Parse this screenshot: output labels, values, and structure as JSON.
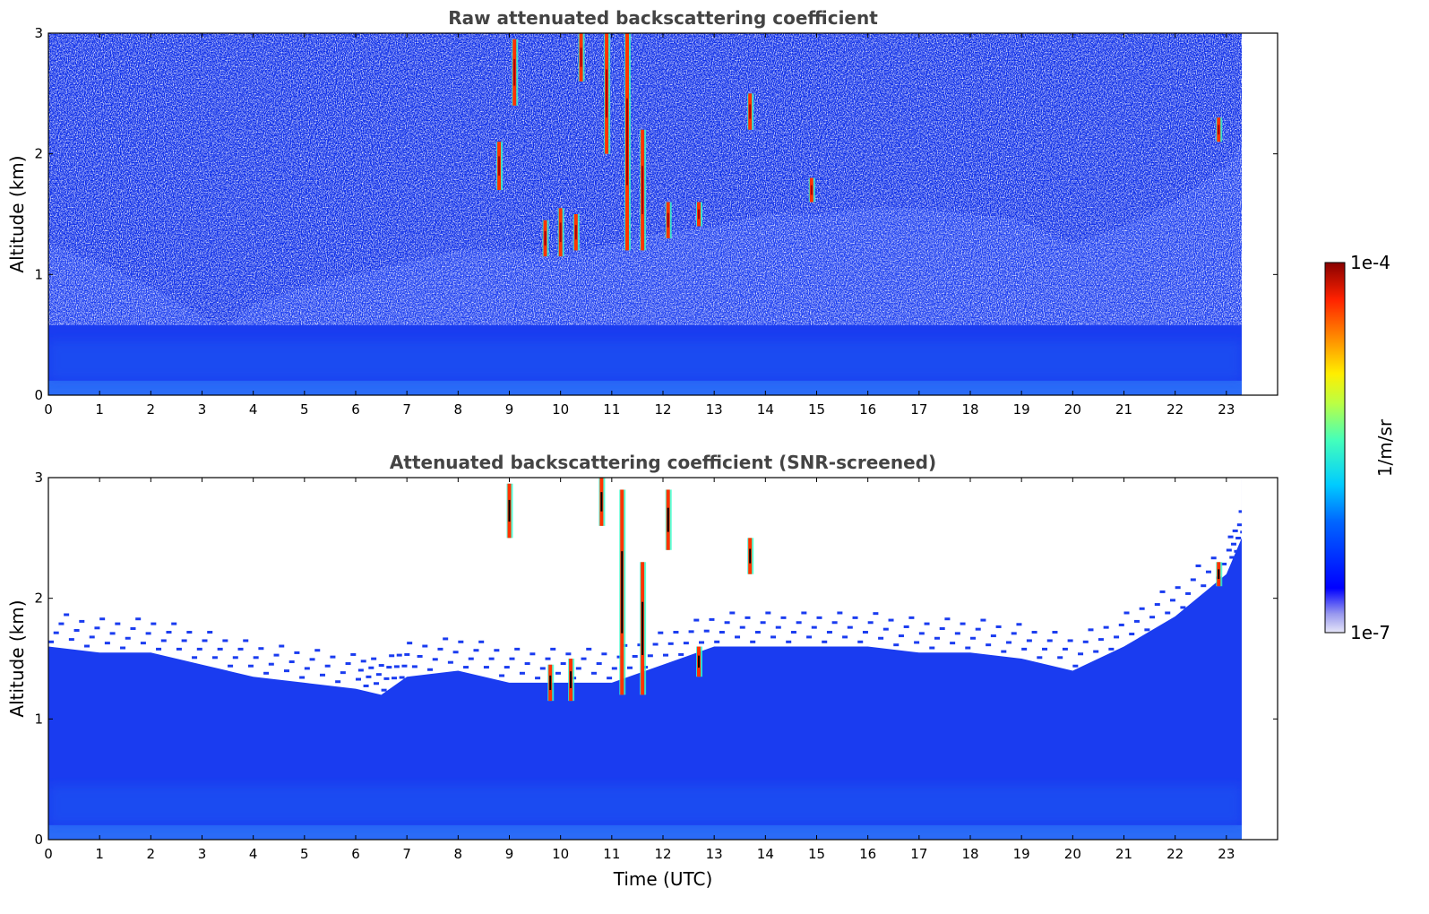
{
  "chart_data": [
    {
      "type": "heatmap",
      "title": "Raw attenuated backscattering coefficient",
      "xlabel": "",
      "ylabel": "Altitude (km)",
      "xlim": [
        0,
        24
      ],
      "ylim": [
        0,
        3
      ],
      "xticks": [
        0,
        1,
        2,
        3,
        4,
        5,
        6,
        7,
        8,
        9,
        10,
        11,
        12,
        13,
        14,
        15,
        16,
        17,
        18,
        19,
        20,
        21,
        22,
        23
      ],
      "yticks": [
        0,
        1,
        2,
        3
      ],
      "data_end_time": 23.3,
      "noise_boundary_km": [
        [
          0,
          1.25
        ],
        [
          1,
          1.1
        ],
        [
          2,
          0.9
        ],
        [
          3,
          0.65
        ],
        [
          3.5,
          0.58
        ],
        [
          4,
          0.75
        ],
        [
          5,
          0.9
        ],
        [
          6,
          1.0
        ],
        [
          7,
          1.1
        ],
        [
          8,
          1.2
        ],
        [
          9,
          1.2
        ],
        [
          10,
          1.15
        ],
        [
          11,
          1.25
        ],
        [
          12,
          1.35
        ],
        [
          13,
          1.4
        ],
        [
          14,
          1.5
        ],
        [
          15,
          1.5
        ],
        [
          16,
          1.55
        ],
        [
          17,
          1.55
        ],
        [
          18,
          1.5
        ],
        [
          19,
          1.45
        ],
        [
          20,
          1.25
        ],
        [
          21,
          1.4
        ],
        [
          22,
          1.6
        ],
        [
          23,
          1.9
        ],
        [
          23.3,
          2.1
        ]
      ],
      "cloud_columns": [
        {
          "t": 8.8,
          "bottom_km": 1.7,
          "top_km": 2.1
        },
        {
          "t": 9.1,
          "bottom_km": 2.4,
          "top_km": 2.95
        },
        {
          "t": 9.7,
          "bottom_km": 1.15,
          "top_km": 1.45
        },
        {
          "t": 10.0,
          "bottom_km": 1.15,
          "top_km": 1.55
        },
        {
          "t": 10.3,
          "bottom_km": 1.2,
          "top_km": 1.5
        },
        {
          "t": 10.4,
          "bottom_km": 2.6,
          "top_km": 3.0
        },
        {
          "t": 10.9,
          "bottom_km": 2.0,
          "top_km": 3.0
        },
        {
          "t": 11.3,
          "bottom_km": 1.2,
          "top_km": 3.0
        },
        {
          "t": 11.6,
          "bottom_km": 1.2,
          "top_km": 2.2
        },
        {
          "t": 12.1,
          "bottom_km": 1.3,
          "top_km": 1.6
        },
        {
          "t": 12.7,
          "bottom_km": 1.4,
          "top_km": 1.6
        },
        {
          "t": 13.7,
          "bottom_km": 2.2,
          "top_km": 2.5
        },
        {
          "t": 14.9,
          "bottom_km": 1.6,
          "top_km": 1.8
        },
        {
          "t": 22.85,
          "bottom_km": 2.1,
          "top_km": 2.3
        }
      ]
    },
    {
      "type": "heatmap",
      "title": "Attenuated backscattering coefficient (SNR-screened)",
      "xlabel": "Time (UTC)",
      "ylabel": "Altitude (km)",
      "xlim": [
        0,
        24
      ],
      "ylim": [
        0,
        3
      ],
      "xticks": [
        0,
        1,
        2,
        3,
        4,
        5,
        6,
        7,
        8,
        9,
        10,
        11,
        12,
        13,
        14,
        15,
        16,
        17,
        18,
        19,
        20,
        21,
        22,
        23
      ],
      "yticks": [
        0,
        1,
        2,
        3
      ],
      "data_end_time": 23.3,
      "layer_top_km": [
        [
          0,
          1.6
        ],
        [
          1,
          1.55
        ],
        [
          2,
          1.55
        ],
        [
          3,
          1.45
        ],
        [
          4,
          1.35
        ],
        [
          5,
          1.3
        ],
        [
          6,
          1.25
        ],
        [
          6.5,
          1.2
        ],
        [
          7,
          1.35
        ],
        [
          8,
          1.4
        ],
        [
          9,
          1.3
        ],
        [
          10,
          1.3
        ],
        [
          11,
          1.3
        ],
        [
          12,
          1.45
        ],
        [
          13,
          1.6
        ],
        [
          14,
          1.6
        ],
        [
          15,
          1.6
        ],
        [
          16,
          1.6
        ],
        [
          17,
          1.55
        ],
        [
          18,
          1.55
        ],
        [
          19,
          1.5
        ],
        [
          20,
          1.4
        ],
        [
          21,
          1.6
        ],
        [
          22,
          1.85
        ],
        [
          23,
          2.2
        ],
        [
          23.3,
          2.5
        ]
      ],
      "cloud_columns": [
        {
          "t": 9.0,
          "bottom_km": 2.5,
          "top_km": 2.95
        },
        {
          "t": 9.8,
          "bottom_km": 1.15,
          "top_km": 1.45
        },
        {
          "t": 10.2,
          "bottom_km": 1.15,
          "top_km": 1.5
        },
        {
          "t": 10.8,
          "bottom_km": 2.6,
          "top_km": 3.0
        },
        {
          "t": 11.2,
          "bottom_km": 1.2,
          "top_km": 2.9
        },
        {
          "t": 11.6,
          "bottom_km": 1.2,
          "top_km": 2.3
        },
        {
          "t": 12.1,
          "bottom_km": 2.4,
          "top_km": 2.9
        },
        {
          "t": 12.7,
          "bottom_km": 1.35,
          "top_km": 1.6
        },
        {
          "t": 13.7,
          "bottom_km": 2.2,
          "top_km": 2.5
        },
        {
          "t": 22.85,
          "bottom_km": 2.1,
          "top_km": 2.3
        }
      ]
    }
  ],
  "colorbar": {
    "label": "1/m/sr",
    "min_label": "1e-7",
    "max_label": "1e-4",
    "scale": "log",
    "colormap": "jet"
  }
}
